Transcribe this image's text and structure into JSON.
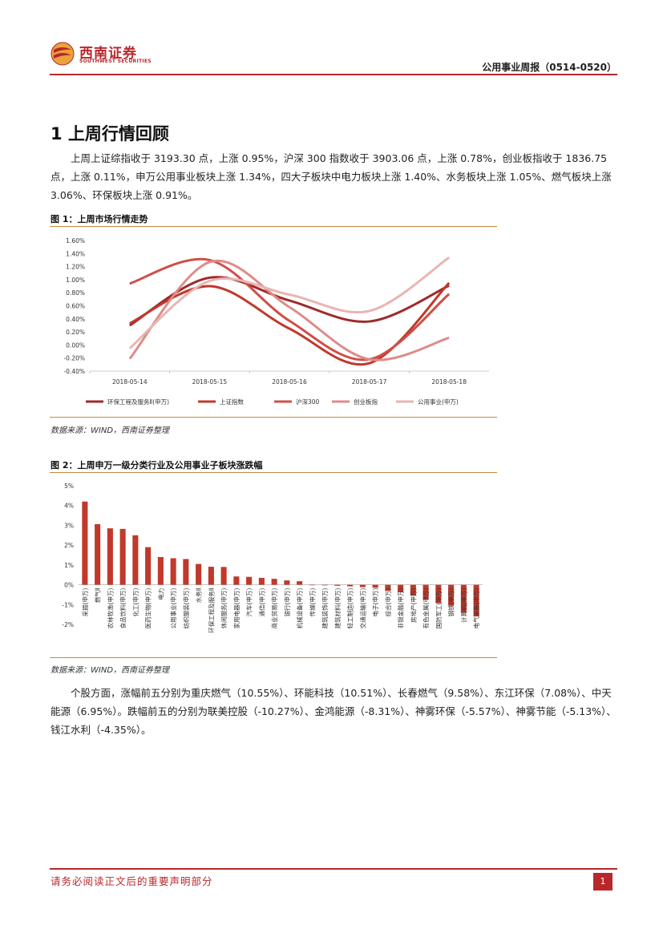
{
  "header": {
    "logo_cn": "西南证券",
    "logo_en": "SOUTHWEST SECURITIES",
    "report_title": "公用事业周报（0514-0520）"
  },
  "section": {
    "title": "1  上周行情回顾",
    "paragraph1": "上周上证综指收于 3193.30 点，上涨 0.95%，沪深 300 指数收于 3903.06 点，上涨 0.78%，创业板指收于 1836.75 点，上涨 0.11%，申万公用事业板块上涨 1.34%，四大子板块中电力板块上涨 1.40%、水务板块上涨 1.05%、燃气板块上涨 3.06%、环保板块上涨 0.91%。",
    "paragraph2": "个股方面，涨幅前五分别为重庆燃气（10.55%）、环能科技（10.51%）、长春燃气（9.58%）、东江环保（7.08%）、中天能源（6.95%）。跌幅前五的分别为联美控股（-10.27%）、金鸿能源（-8.31%）、神雾环保（-5.57%）、神雾节能（-5.13%）、钱江水利（-4.35%）。"
  },
  "figure1": {
    "title": "图 1：上周市场行情走势",
    "source": "数据来源：WIND，西南证券整理"
  },
  "figure2": {
    "title": "图 2：上周申万一级分类行业及公用事业子板块涨跌幅",
    "source": "数据来源：WIND，西南证券整理"
  },
  "footer": {
    "disclaimer": "请务必阅读正文后的重要声明部分",
    "page": "1"
  },
  "colors": {
    "accent": "#b8272c",
    "line": "#c78a3a"
  },
  "chart_data": [
    {
      "type": "line",
      "categories": [
        "2018-05-14",
        "2018-05-15",
        "2018-05-16",
        "2018-05-17",
        "2018-05-18"
      ],
      "yticks": [
        "1.60%",
        "1.40%",
        "1.20%",
        "1.00%",
        "0.80%",
        "0.60%",
        "0.40%",
        "0.20%",
        "0.00%",
        "-0.20%",
        "-0.40%"
      ],
      "ylim": [
        -0.4,
        1.6
      ],
      "series": [
        {
          "name": "环保工程及服务Ⅱ(申万)",
          "color": "#9e2a2b",
          "values": [
            0.3,
            1.03,
            0.68,
            0.36,
            0.91
          ]
        },
        {
          "name": "上证指数",
          "color": "#c0392b",
          "values": [
            0.33,
            0.9,
            0.25,
            -0.28,
            0.95
          ]
        },
        {
          "name": "沪深300",
          "color": "#cf4f48",
          "values": [
            0.94,
            1.3,
            0.37,
            -0.22,
            0.78
          ]
        },
        {
          "name": "创业板指",
          "color": "#dd8c88",
          "values": [
            -0.21,
            1.27,
            0.58,
            -0.22,
            0.11
          ]
        },
        {
          "name": "公用事业(申万)",
          "color": "#e8b5b2",
          "values": [
            -0.05,
            0.98,
            0.77,
            0.52,
            1.34
          ]
        }
      ]
    },
    {
      "type": "bar",
      "yticks": [
        "5%",
        "4%",
        "3%",
        "2%",
        "1%",
        "0%",
        "-1%",
        "-2%"
      ],
      "ylim": [
        -2,
        5
      ],
      "categories": [
        "采掘(申万)",
        "燃气Ⅱ",
        "农林牧渔(申万)",
        "食品饮料(申万)",
        "化工(申万)",
        "医药生物(申万)",
        "电力",
        "公用事业(申万)",
        "纺织服装(申万)",
        "水务Ⅱ",
        "环保工程及服务Ⅱ",
        "休闲服务(申万)",
        "家用电器(申万)",
        "汽车(申万)",
        "通信(申万)",
        "商业贸易(申万)",
        "银行(申万)",
        "机械设备(申万)",
        "传媒(申万)",
        "建筑装饰(申万)",
        "建筑材料(申万)",
        "轻工制造(申万)",
        "交通运输(申万)",
        "电子(申万)",
        "综合(申万)",
        "非银金融(申万)",
        "房地产(申万)",
        "有色金属(申万)",
        "国防军工(申万)",
        "钢铁(申万)",
        "计算机(申万)",
        "电气设备(申万)"
      ],
      "values": [
        4.2,
        3.06,
        2.85,
        2.82,
        2.5,
        1.9,
        1.4,
        1.34,
        1.3,
        1.05,
        0.91,
        0.9,
        0.42,
        0.4,
        0.35,
        0.3,
        0.22,
        0.18,
        -0.02,
        -0.03,
        -0.05,
        -0.08,
        -0.12,
        -0.15,
        -0.3,
        -0.38,
        -0.55,
        -0.75,
        -0.92,
        -1.05,
        -1.4,
        -1.6
      ]
    }
  ]
}
